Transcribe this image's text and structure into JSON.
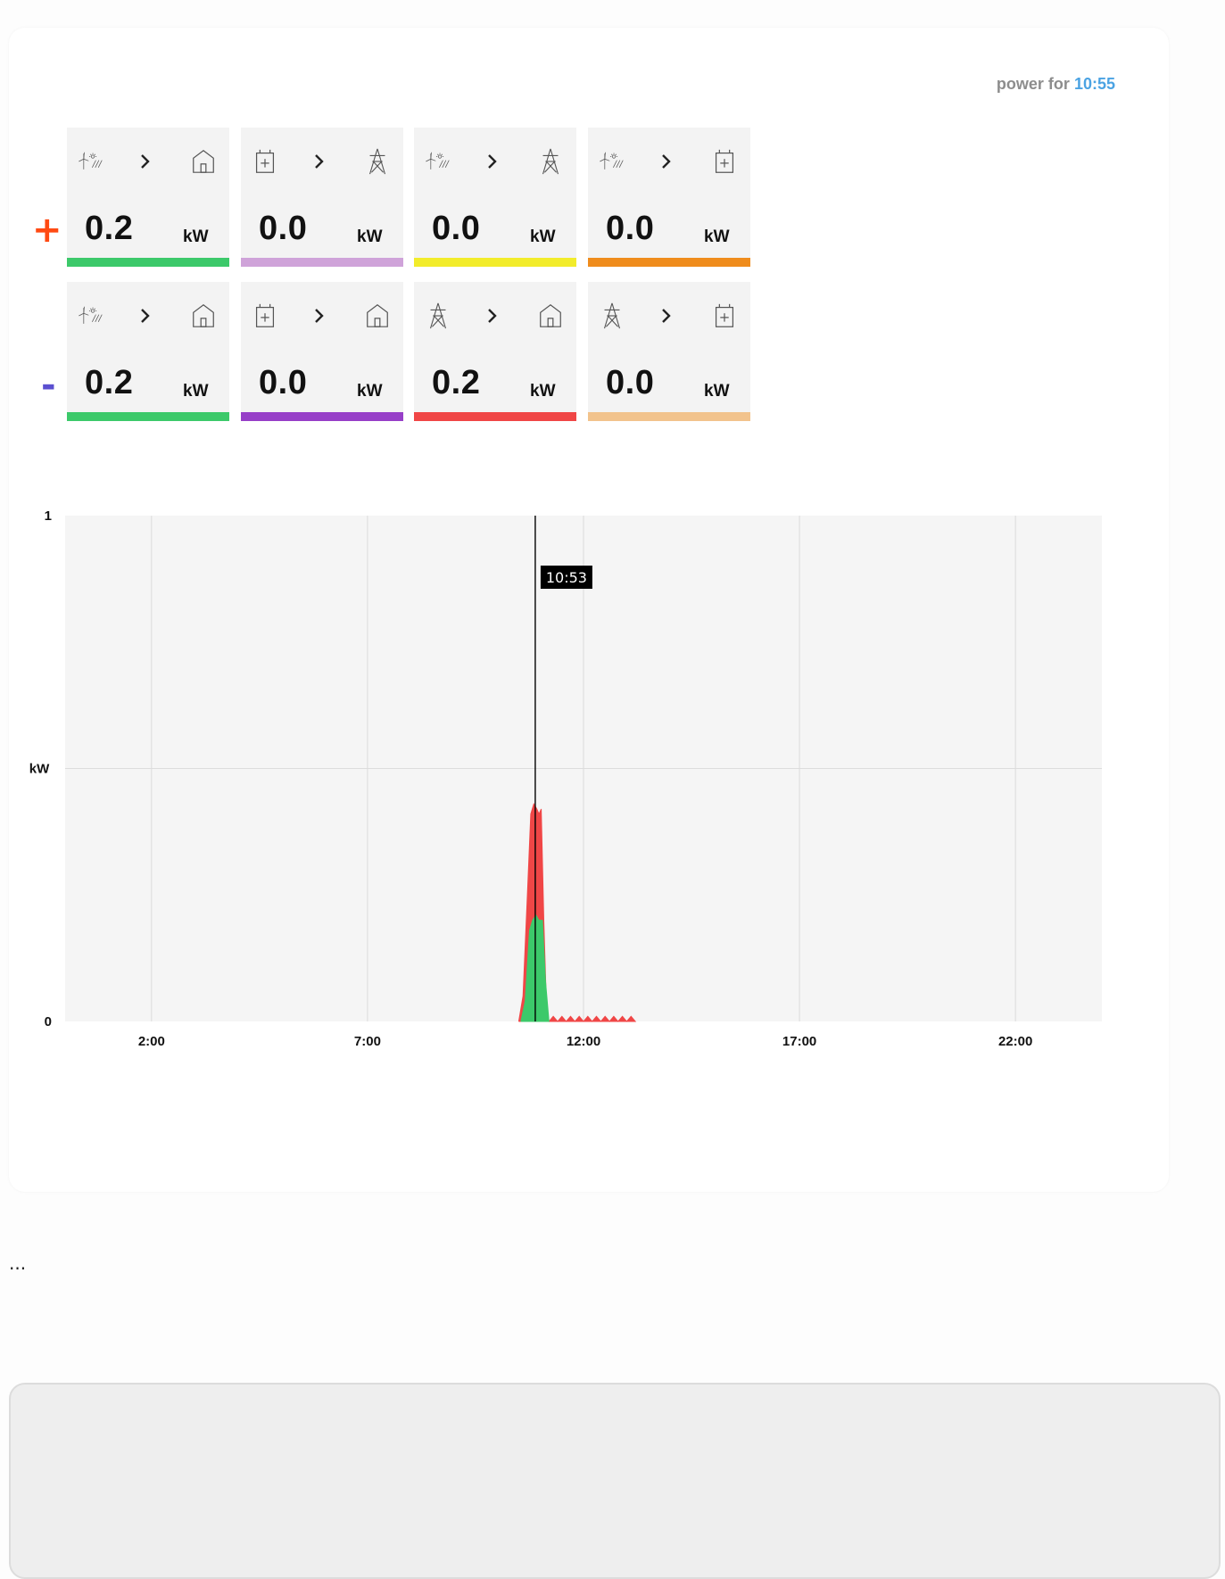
{
  "header": {
    "prefix": "power for",
    "time": "10:55"
  },
  "signs": {
    "plus": "+",
    "minus": "-"
  },
  "colors": {
    "plus_sign": "#ff4a13",
    "minus_sign": "#5b4fd0",
    "time_accent": "#4ba3e3"
  },
  "rows": [
    {
      "sign": "plus",
      "tiles": [
        {
          "from": "solar-wind-icon",
          "to": "house-icon",
          "value": "0.2",
          "unit": "kW",
          "color": "#3cc96a"
        },
        {
          "from": "battery-icon",
          "to": "power-tower-icon",
          "value": "0.0",
          "unit": "kW",
          "color": "#cfa3d9"
        },
        {
          "from": "solar-wind-icon",
          "to": "power-tower-icon",
          "value": "0.0",
          "unit": "kW",
          "color": "#f2ec2b"
        },
        {
          "from": "solar-wind-icon",
          "to": "battery-icon",
          "value": "0.0",
          "unit": "kW",
          "color": "#ef8c1c"
        }
      ]
    },
    {
      "sign": "minus",
      "tiles": [
        {
          "from": "solar-wind-icon",
          "to": "house-icon",
          "value": "0.2",
          "unit": "kW",
          "color": "#3cc96a"
        },
        {
          "from": "battery-icon",
          "to": "house-icon",
          "value": "0.0",
          "unit": "kW",
          "color": "#973fc8"
        },
        {
          "from": "power-tower-icon",
          "to": "house-icon",
          "value": "0.2",
          "unit": "kW",
          "color": "#f04646"
        },
        {
          "from": "power-tower-icon",
          "to": "battery-icon",
          "value": "0.0",
          "unit": "kW",
          "color": "#f2c38c"
        }
      ]
    }
  ],
  "chart_data": {
    "type": "area",
    "title": "",
    "xlabel": "",
    "ylabel": "kW",
    "ylim": [
      0,
      1
    ],
    "y_ticks": [
      "0",
      "1"
    ],
    "x_range": [
      "0:00",
      "24:00"
    ],
    "x_ticks": [
      "2:00",
      "7:00",
      "12:00",
      "17:00",
      "22:00"
    ],
    "grid": true,
    "cursor": {
      "time": "10:53",
      "hour": 10.883
    },
    "series": [
      {
        "color": "#f04646",
        "points": [
          [
            10.5,
            0
          ],
          [
            10.6,
            0.05
          ],
          [
            10.7,
            0.25
          ],
          [
            10.78,
            0.41
          ],
          [
            10.85,
            0.43
          ],
          [
            10.92,
            0.42
          ],
          [
            10.97,
            0.41
          ],
          [
            11.02,
            0.42
          ],
          [
            11.08,
            0.2
          ],
          [
            11.15,
            0.01
          ],
          [
            11.2,
            0
          ],
          [
            11.3,
            0.01
          ],
          [
            11.4,
            0
          ],
          [
            11.5,
            0.01
          ],
          [
            11.6,
            0
          ],
          [
            11.7,
            0.01
          ],
          [
            11.8,
            0
          ],
          [
            11.9,
            0.01
          ],
          [
            12.0,
            0
          ],
          [
            12.1,
            0.01
          ],
          [
            12.2,
            0
          ],
          [
            12.3,
            0.01
          ],
          [
            12.4,
            0
          ],
          [
            12.5,
            0.01
          ],
          [
            12.6,
            0
          ],
          [
            12.7,
            0.01
          ],
          [
            12.8,
            0
          ],
          [
            12.9,
            0.01
          ],
          [
            13.0,
            0
          ],
          [
            13.1,
            0.01
          ],
          [
            13.2,
            0
          ]
        ]
      },
      {
        "color": "#3cc96a",
        "points": [
          [
            10.55,
            0
          ],
          [
            10.65,
            0.04
          ],
          [
            10.75,
            0.18
          ],
          [
            10.82,
            0.2
          ],
          [
            10.9,
            0.21
          ],
          [
            10.97,
            0.2
          ],
          [
            11.05,
            0.2
          ],
          [
            11.12,
            0.08
          ],
          [
            11.2,
            0
          ]
        ]
      }
    ]
  },
  "footer": {
    "ellipsis": "..."
  }
}
